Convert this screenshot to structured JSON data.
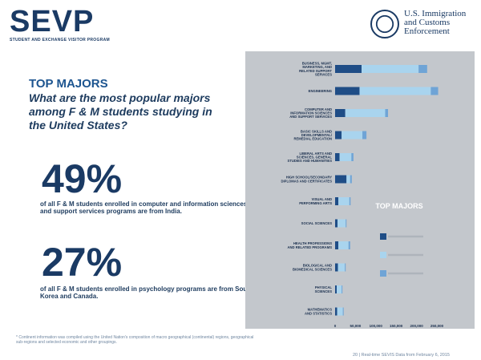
{
  "header": {
    "logo_title": "SEVP",
    "logo_subtitle": "STUDENT AND EXCHANGE VISITOR PROGRAM",
    "agency_line1": "U.S. Immigration",
    "agency_line2": "and Customs",
    "agency_line3": "Enforcement",
    "seal_icon": "dhs-seal-icon"
  },
  "content": {
    "heading": "TOP MAJORS",
    "question": "What are the most popular majors among F & M students studying in the United States?",
    "stat1_value": "49%",
    "stat1_text": "of all F & M students enrolled in computer and information sciences and support services programs are from India.",
    "stat2_value": "27%",
    "stat2_text": "of all F & M students enrolled in psychology programs are from South Korea and Canada."
  },
  "footer": {
    "footnote": "* Continent information was compiled using the United Nation's composition of macro geographical (continental) regions, geographical sub-regions and selected economic and other groupings.",
    "page_note": "20 | Real-time SEVIS Data from February 6, 2015"
  },
  "chart_data": {
    "type": "bar",
    "stacked": true,
    "orientation": "horizontal",
    "title": "TOP MAJORS",
    "categories": [
      [
        "BUSINESS, MGMT,",
        "MARKETING, AND",
        "RELATED SUPPORT",
        "SERVICES"
      ],
      [
        "ENGINEERING"
      ],
      [
        "COMPUTER AND",
        "INFORMATION SCIENCES",
        "AND SUPPORT SERVICES"
      ],
      [
        "BASIC SKILLS AND",
        "DEVELOPMENTAL/",
        "REMEDIAL EDUCATION"
      ],
      [
        "LIBERAL ARTS AND",
        "SCIENCES, GENERAL",
        "STUDIES AND HUMANITIES"
      ],
      [
        "HIGH SCHOOL/SECONDARY",
        "DIPLOMAS AND CERTIFICATES"
      ],
      [
        "VISUAL AND",
        "PERFORMING ARTS"
      ],
      [
        "SOCIAL SCIENCES"
      ],
      [
        "HEALTH PROFESSIONS",
        "AND RELATED PROGRAMS"
      ],
      [
        "BIOLOGICAL AND",
        "BIOMEDICAL SCIENCES"
      ],
      [
        "PHYSICAL",
        "SCIENCES"
      ],
      [
        "MATHEMATICS",
        "AND STATISTICS"
      ]
    ],
    "series": [
      {
        "values": [
          65000,
          60000,
          25000,
          16000,
          11000,
          28000,
          8000,
          6000,
          8000,
          7000,
          4000,
          5000
        ]
      },
      {
        "values": [
          140000,
          175000,
          98000,
          51000,
          29000,
          9000,
          27000,
          20000,
          25000,
          17000,
          12000,
          14000
        ]
      },
      {
        "values": [
          21000,
          18000,
          7000,
          10000,
          5000,
          4000,
          3000,
          2000,
          4000,
          2000,
          2000,
          2000
        ]
      }
    ],
    "xlim": [
      0,
      250000
    ],
    "xticks": [
      "0",
      "50,000",
      "100,000",
      "150,000",
      "200,000",
      "250,000"
    ],
    "legend_title": "TOP MAJORS",
    "legend_position": "right",
    "colors": [
      "#1f4d86",
      "#a9d4ee",
      "#6fa4d6"
    ]
  }
}
